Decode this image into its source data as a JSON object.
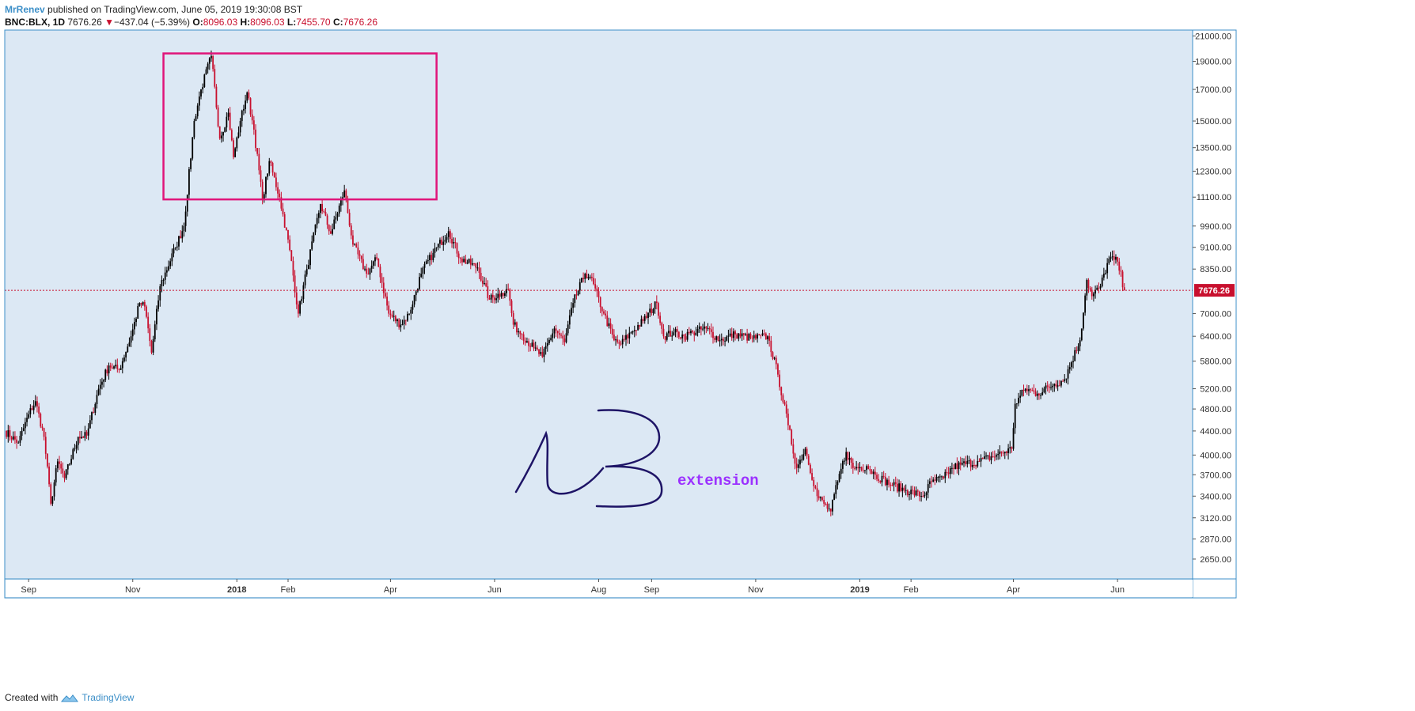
{
  "header": {
    "author": "MrRenev",
    "published": "published on TradingView.com, June 05, 2019 19:30:08 BST",
    "symbol": "BNC:BLX, 1D",
    "last": "7676.26",
    "change_arrow": "▼",
    "change": "−437.04 (−5.39%)",
    "o_label": "O:",
    "o": "8096.03",
    "h_label": "H:",
    "h": "8096.03",
    "l_label": "L:",
    "l": "7455.70",
    "c_label": "C:",
    "c": "7676.26"
  },
  "footer": {
    "created_with": "Created with",
    "brand": "TradingView"
  },
  "colors": {
    "plot_bg": "#dce8f4",
    "up": "#000000",
    "down": "#c8102e",
    "box": "#e0157a",
    "handwriting": "#1e1466",
    "annotation": "#9b30ff",
    "price_tag": "#c8102e",
    "axis_border": "#3c8fc8"
  },
  "chart_data": {
    "type": "candlestick",
    "symbol": "BNC:BLX",
    "interval": "1D",
    "y_axis": {
      "scale": "log",
      "range": [
        2450,
        21500
      ],
      "ticks": [
        "21000.00",
        "19000.00",
        "17000.00",
        "15000.00",
        "13500.00",
        "12300.00",
        "11100.00",
        "9900.00",
        "9100.00",
        "8350.00",
        "7000.00",
        "6400.00",
        "5800.00",
        "5200.00",
        "4800.00",
        "4400.00",
        "4000.00",
        "3700.00",
        "3400.00",
        "3120.00",
        "2870.00",
        "2650.00"
      ]
    },
    "x_axis": {
      "range": [
        "2017-08-18",
        "2019-07-15"
      ],
      "ticks": [
        {
          "label": "Sep",
          "date": "2017-09-01"
        },
        {
          "label": "Nov",
          "date": "2017-11-01"
        },
        {
          "label": "2018",
          "date": "2018-01-01",
          "bold": true
        },
        {
          "label": "Feb",
          "date": "2018-01-31"
        },
        {
          "label": "Apr",
          "date": "2018-04-01"
        },
        {
          "label": "Jun",
          "date": "2018-06-01"
        },
        {
          "label": "Aug",
          "date": "2018-08-01"
        },
        {
          "label": "Sep",
          "date": "2018-09-01"
        },
        {
          "label": "Nov",
          "date": "2018-11-01"
        },
        {
          "label": "2019",
          "date": "2019-01-01",
          "bold": true
        },
        {
          "label": "Feb",
          "date": "2019-01-31"
        },
        {
          "label": "Apr",
          "date": "2019-04-01"
        },
        {
          "label": "Jun",
          "date": "2019-06-01"
        }
      ]
    },
    "last_price": 7676.26,
    "last_price_label": "7676.26",
    "price_path": [
      [
        "2017-08-18",
        4400
      ],
      [
        "2017-08-26",
        4200
      ],
      [
        "2017-09-01",
        4700
      ],
      [
        "2017-09-05",
        4950
      ],
      [
        "2017-09-10",
        4300
      ],
      [
        "2017-09-14",
        3300
      ],
      [
        "2017-09-18",
        3900
      ],
      [
        "2017-09-22",
        3650
      ],
      [
        "2017-09-30",
        4300
      ],
      [
        "2017-10-05",
        4320
      ],
      [
        "2017-10-12",
        5200
      ],
      [
        "2017-10-18",
        5700
      ],
      [
        "2017-10-24",
        5600
      ],
      [
        "2017-10-31",
        6400
      ],
      [
        "2017-11-05",
        7300
      ],
      [
        "2017-11-08",
        7200
      ],
      [
        "2017-11-12",
        6000
      ],
      [
        "2017-11-17",
        7800
      ],
      [
        "2017-11-26",
        9100
      ],
      [
        "2017-12-01",
        9900
      ],
      [
        "2017-12-07",
        15000
      ],
      [
        "2017-12-11",
        17000
      ],
      [
        "2017-12-17",
        19400
      ],
      [
        "2017-12-22",
        14000
      ],
      [
        "2017-12-27",
        15500
      ],
      [
        "2017-12-30",
        13000
      ],
      [
        "2018-01-03",
        15000
      ],
      [
        "2018-01-07",
        16800
      ],
      [
        "2018-01-11",
        14500
      ],
      [
        "2018-01-16",
        11000
      ],
      [
        "2018-01-20",
        12800
      ],
      [
        "2018-01-26",
        11100
      ],
      [
        "2018-02-01",
        9000
      ],
      [
        "2018-02-06",
        7000
      ],
      [
        "2018-02-11",
        8350
      ],
      [
        "2018-02-19",
        10800
      ],
      [
        "2018-02-25",
        9600
      ],
      [
        "2018-03-05",
        11400
      ],
      [
        "2018-03-10",
        9200
      ],
      [
        "2018-03-18",
        8200
      ],
      [
        "2018-03-24",
        8700
      ],
      [
        "2018-03-31",
        7000
      ],
      [
        "2018-04-07",
        6700
      ],
      [
        "2018-04-12",
        7000
      ],
      [
        "2018-04-19",
        8200
      ],
      [
        "2018-04-26",
        8900
      ],
      [
        "2018-05-05",
        9700
      ],
      [
        "2018-05-12",
        8700
      ],
      [
        "2018-05-22",
        8400
      ],
      [
        "2018-05-29",
        7400
      ],
      [
        "2018-06-05",
        7600
      ],
      [
        "2018-06-09",
        7700
      ],
      [
        "2018-06-12",
        6700
      ],
      [
        "2018-06-17",
        6450
      ],
      [
        "2018-06-24",
        6100
      ],
      [
        "2018-06-29",
        5900
      ],
      [
        "2018-07-06",
        6600
      ],
      [
        "2018-07-12",
        6250
      ],
      [
        "2018-07-17",
        7300
      ],
      [
        "2018-07-24",
        8200
      ],
      [
        "2018-07-27",
        8100
      ],
      [
        "2018-08-04",
        7000
      ],
      [
        "2018-08-10",
        6300
      ],
      [
        "2018-08-14",
        6200
      ],
      [
        "2018-08-20",
        6500
      ],
      [
        "2018-08-27",
        6800
      ],
      [
        "2018-09-04",
        7300
      ],
      [
        "2018-09-08",
        6400
      ],
      [
        "2018-09-14",
        6500
      ],
      [
        "2018-09-20",
        6400
      ],
      [
        "2018-09-25",
        6500
      ],
      [
        "2018-10-03",
        6600
      ],
      [
        "2018-10-11",
        6300
      ],
      [
        "2018-10-20",
        6450
      ],
      [
        "2018-10-30",
        6350
      ],
      [
        "2018-11-08",
        6400
      ],
      [
        "2018-11-14",
        5500
      ],
      [
        "2018-11-20",
        4500
      ],
      [
        "2018-11-25",
        3800
      ],
      [
        "2018-11-30",
        4100
      ],
      [
        "2018-12-07",
        3400
      ],
      [
        "2018-12-15",
        3200
      ],
      [
        "2018-12-19",
        3600
      ],
      [
        "2018-12-24",
        4050
      ],
      [
        "2018-12-28",
        3800
      ],
      [
        "2019-01-05",
        3830
      ],
      [
        "2019-01-10",
        3700
      ],
      [
        "2019-01-20",
        3550
      ],
      [
        "2019-01-28",
        3480
      ],
      [
        "2019-02-07",
        3400
      ],
      [
        "2019-02-12",
        3600
      ],
      [
        "2019-02-19",
        3650
      ],
      [
        "2019-02-24",
        3800
      ],
      [
        "2019-03-01",
        3850
      ],
      [
        "2019-03-12",
        3900
      ],
      [
        "2019-03-22",
        4000
      ],
      [
        "2019-03-31",
        4100
      ],
      [
        "2019-04-02",
        4900
      ],
      [
        "2019-04-08",
        5200
      ],
      [
        "2019-04-15",
        5100
      ],
      [
        "2019-04-25",
        5300
      ],
      [
        "2019-05-01",
        5400
      ],
      [
        "2019-05-10",
        6300
      ],
      [
        "2019-05-14",
        8000
      ],
      [
        "2019-05-17",
        7500
      ],
      [
        "2019-05-22",
        7800
      ],
      [
        "2019-05-27",
        8700
      ],
      [
        "2019-06-01",
        8600
      ],
      [
        "2019-06-05",
        7676
      ]
    ],
    "annotations": [
      {
        "type": "rectangle",
        "from_date": "2017-11-19",
        "to_date": "2018-04-28",
        "top_price": 19600,
        "bottom_price": 11000
      },
      {
        "type": "handwriting",
        "text": "13"
      },
      {
        "type": "text",
        "text": "extension"
      }
    ]
  }
}
